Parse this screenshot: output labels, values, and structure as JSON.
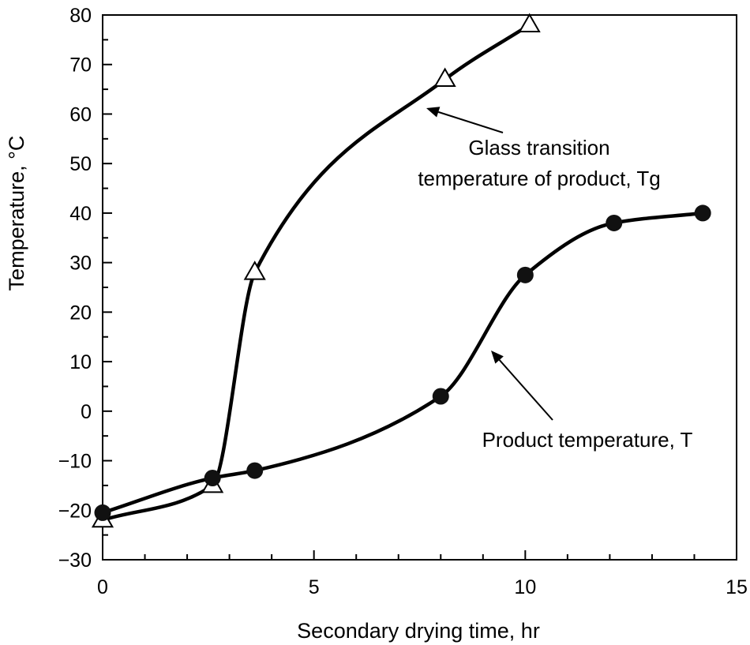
{
  "chart_data": {
    "type": "line",
    "xlabel": "Secondary drying time, hr",
    "ylabel": "Temperature, °C",
    "xlim": [
      0,
      15
    ],
    "ylim": [
      -30,
      80
    ],
    "x_ticks": [
      0,
      5,
      10,
      15
    ],
    "x_tick_labels": [
      "0",
      "5",
      "10",
      "15"
    ],
    "y_ticks": [
      -30,
      -20,
      -10,
      0,
      10,
      20,
      30,
      40,
      50,
      60,
      70,
      80
    ],
    "y_tick_labels": [
      "−30",
      "−20",
      "−10",
      "0",
      "10",
      "20",
      "30",
      "40",
      "50",
      "60",
      "70",
      "80"
    ],
    "grid": false,
    "series": [
      {
        "marker": "triangle",
        "x": [
          0,
          2.6,
          3.6,
          8.1,
          10.1
        ],
        "y": [
          -22,
          -15,
          28,
          67,
          78
        ]
      },
      {
        "marker": "circle",
        "x": [
          0,
          2.6,
          3.6,
          8.0,
          10.0,
          12.1,
          14.2
        ],
        "y": [
          -20.5,
          -13.5,
          -12,
          3,
          27.5,
          38,
          40
        ]
      }
    ],
    "annotations": [
      {
        "lines": [
          "Glass transition",
          "temperature of product, Tg"
        ]
      },
      {
        "lines": [
          "Product temperature, T"
        ]
      }
    ]
  }
}
